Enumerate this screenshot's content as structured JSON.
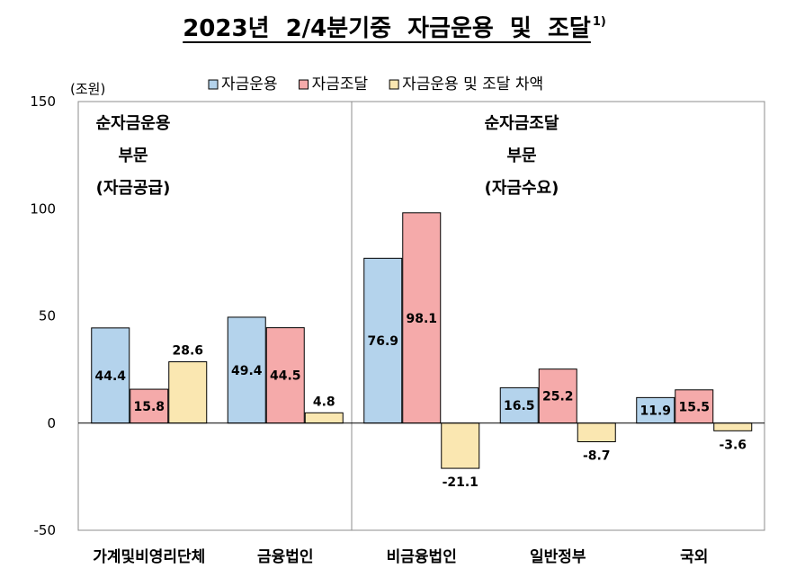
{
  "chart_data": {
    "type": "bar",
    "title": "2023년  2/4분기중  자금운용  및  조달",
    "title_superscript": "1)",
    "unit_label": "(조원)",
    "ylim": [
      -50,
      150
    ],
    "yticks": [
      -50,
      0,
      50,
      100,
      150
    ],
    "grid": false,
    "legend_position": "top",
    "categories": [
      "가계및비영리단체",
      "금융법인",
      "비금융법인",
      "일반정부",
      "국외"
    ],
    "series": [
      {
        "name": "자금운용",
        "color": "#b4d3ec",
        "values": [
          44.4,
          49.4,
          76.9,
          16.5,
          11.9
        ]
      },
      {
        "name": "자금조달",
        "color": "#f5aaaa",
        "values": [
          15.8,
          44.5,
          98.1,
          25.2,
          15.5
        ]
      },
      {
        "name": "자금운용 및 조달 차액",
        "color": "#fae7b1",
        "values": [
          28.6,
          4.8,
          -21.1,
          -8.7,
          -3.6
        ]
      }
    ],
    "annotations": [
      {
        "lines": [
          "순자금운용",
          "부문",
          "(자금공급)"
        ]
      },
      {
        "lines": [
          "순자금조달",
          "부문",
          "(자금수요)"
        ]
      }
    ]
  }
}
